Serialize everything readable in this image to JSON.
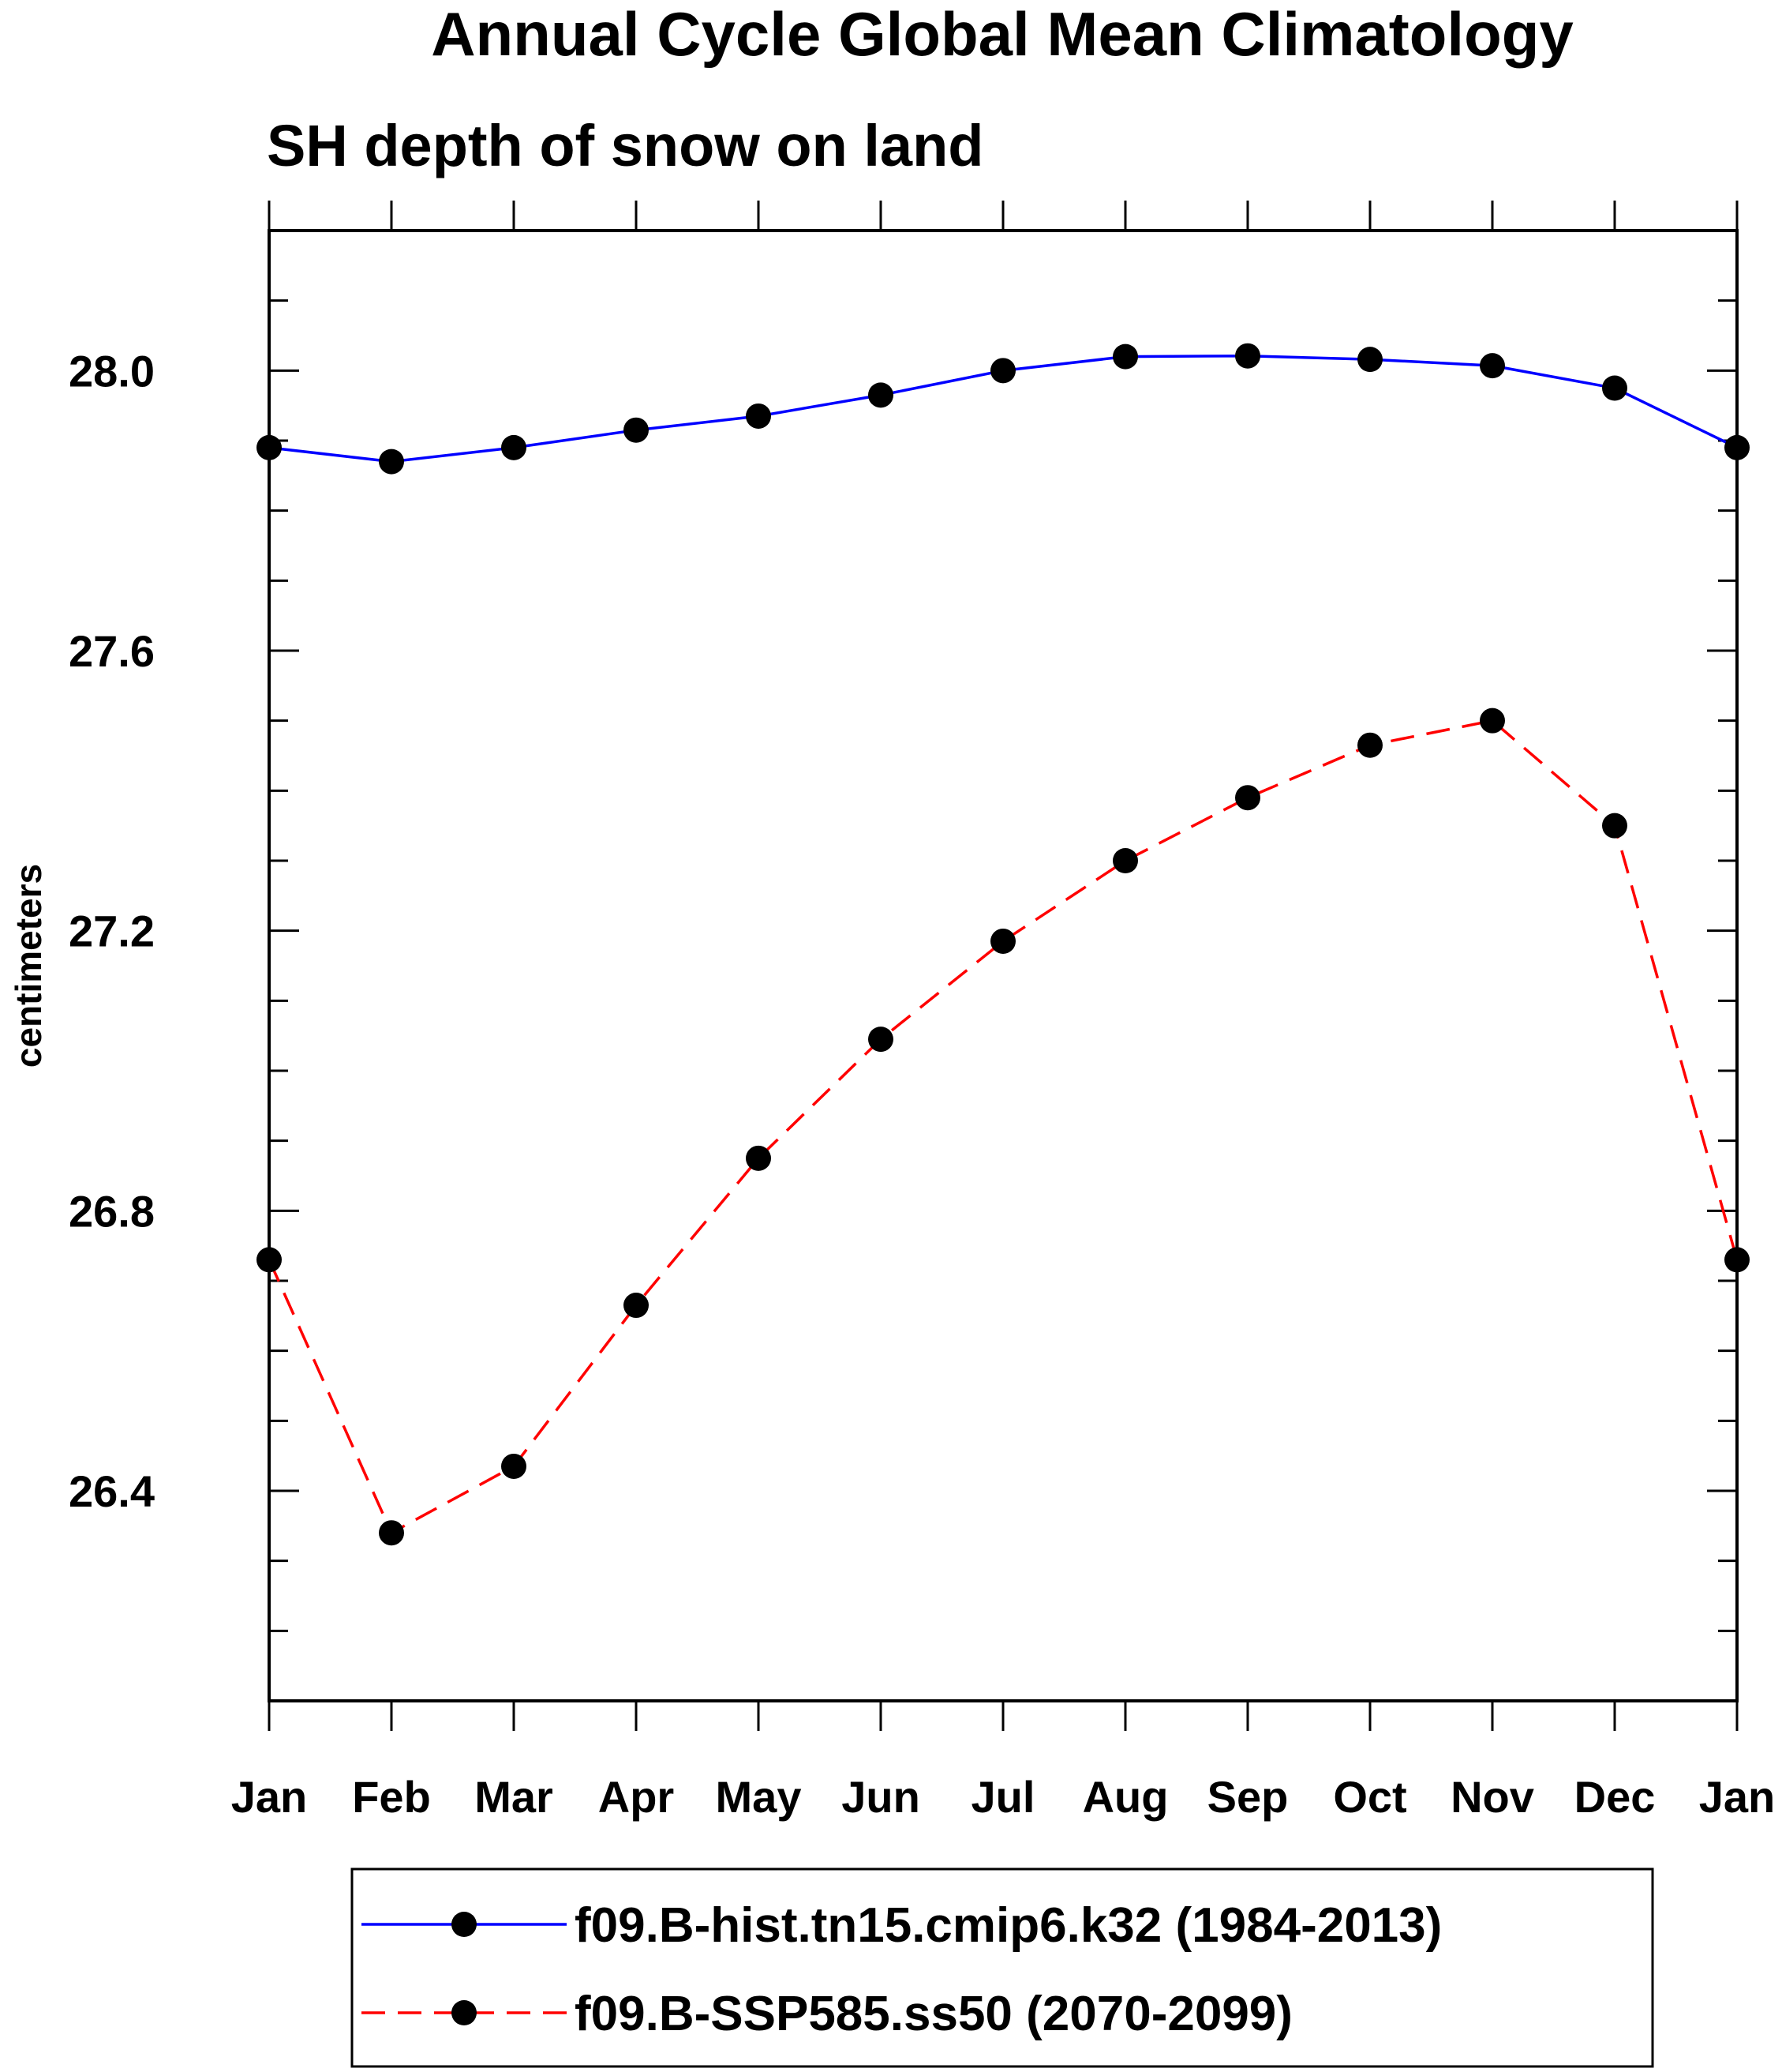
{
  "chart_data": {
    "type": "line",
    "title": "Annual Cycle Global Mean Climatology",
    "subtitle": "SH depth of snow on land",
    "xlabel": "",
    "ylabel": "centimeters",
    "categories": [
      "Jan",
      "Feb",
      "Mar",
      "Apr",
      "May",
      "Jun",
      "Jul",
      "Aug",
      "Sep",
      "Oct",
      "Nov",
      "Dec",
      "Jan"
    ],
    "ylim": [
      26.1,
      28.2
    ],
    "yticks": [
      "26.4",
      "26.8",
      "27.2",
      "27.6",
      "28.0"
    ],
    "grid": false,
    "legend_position": "bottom",
    "series": [
      {
        "name": "f09.B-hist.tn15.cmip6.k32 (1984-2013)",
        "color": "#0000ff",
        "dash": "solid",
        "marker": "circle",
        "values": [
          27.89,
          27.87,
          27.89,
          27.915,
          27.935,
          27.965,
          28.0,
          28.02,
          28.021,
          28.016,
          28.007,
          27.975,
          27.89
        ]
      },
      {
        "name": "f09.B-SSP585.ss50 (2070-2099)",
        "color": "#ff0000",
        "dash": "dashed",
        "marker": "circle",
        "values": [
          26.73,
          26.34,
          26.435,
          26.665,
          26.875,
          27.045,
          27.185,
          27.3,
          27.39,
          27.465,
          27.5,
          27.35,
          26.73
        ]
      }
    ]
  }
}
